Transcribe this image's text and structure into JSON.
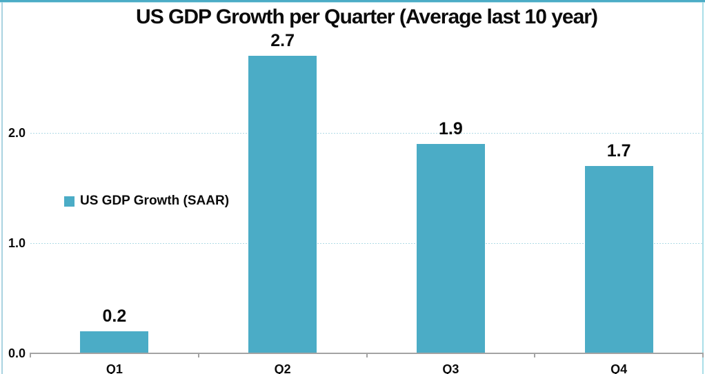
{
  "title": "US GDP Growth per Quarter (Average last 10 year)",
  "legend": {
    "label": "US GDP Growth (SAAR)",
    "swatch_color": "#4BACC6"
  },
  "chart_data": {
    "type": "bar",
    "title": "US GDP Growth per Quarter (Average last 10 year)",
    "categories": [
      "Q1",
      "Q2",
      "Q3",
      "Q4"
    ],
    "series": [
      {
        "name": "US GDP Growth (SAAR)",
        "values": [
          0.2,
          2.7,
          1.9,
          1.7
        ],
        "data_labels": [
          "0.2",
          "2.7",
          "1.9",
          "1.7"
        ]
      }
    ],
    "xlabel": "",
    "ylabel": "",
    "ylim": [
      0,
      2.8
    ],
    "yticks": [
      0.0,
      1.0,
      2.0
    ],
    "ytick_labels": [
      "0.0",
      "1.0",
      "2.0"
    ],
    "grid": "horizontal dashed gridlines at yticks above zero",
    "legend_position": "middle-left inside plot",
    "colors": {
      "bar": "#4BACC6",
      "gridline": "#AFDAE5",
      "axis_line": "#A3A3A3",
      "text": "#0b0b0b",
      "frame_top": "#4BACC6",
      "frame_sides": "#A9D3E0"
    }
  }
}
